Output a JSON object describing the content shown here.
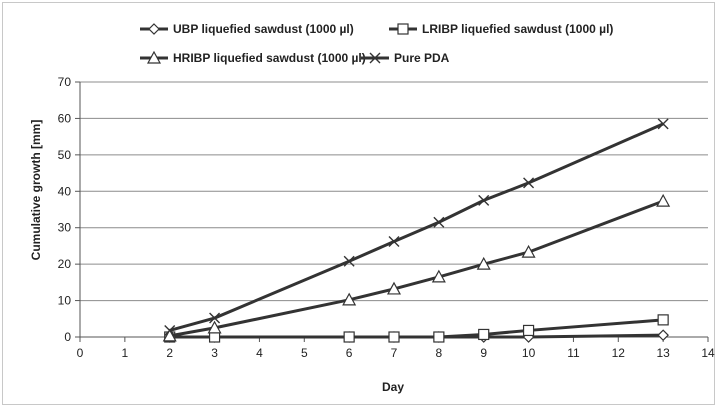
{
  "chart_data": {
    "type": "line",
    "title": "",
    "xlabel": "Day",
    "ylabel": "Cumulative growth [mm]",
    "xlim": [
      0,
      14
    ],
    "ylim": [
      0,
      70
    ],
    "xticks": [
      0,
      1,
      2,
      3,
      4,
      5,
      6,
      7,
      8,
      9,
      10,
      11,
      12,
      13,
      14
    ],
    "yticks": [
      0,
      10,
      20,
      30,
      40,
      50,
      60,
      70
    ],
    "grid": "horizontal",
    "legend_position": "top",
    "series": [
      {
        "name": "UBP liquefied sawdust (1000 µl)",
        "marker": "diamond",
        "x": [
          2,
          3,
          6,
          7,
          8,
          9,
          10,
          13
        ],
        "y": [
          0,
          0,
          0,
          0,
          0,
          0,
          0,
          0.5
        ]
      },
      {
        "name": "LRIBP liquefied sawdust (1000 µl)",
        "marker": "square",
        "x": [
          2,
          3,
          6,
          7,
          8,
          9,
          10,
          13
        ],
        "y": [
          0,
          0,
          0,
          0,
          0,
          0.7,
          1.8,
          4.7
        ]
      },
      {
        "name": "HRIBP liquefied sawdust (1000 µl)",
        "marker": "triangle",
        "x": [
          2,
          3,
          6,
          7,
          8,
          9,
          10,
          13
        ],
        "y": [
          0.3,
          2.5,
          10.2,
          13.2,
          16.5,
          20,
          23.3,
          37.3
        ]
      },
      {
        "name": "Pure PDA",
        "marker": "x",
        "x": [
          2,
          3,
          6,
          7,
          8,
          9,
          10,
          13
        ],
        "y": [
          1.8,
          5.2,
          20.8,
          26.2,
          31.5,
          37.5,
          42.3,
          58.5
        ]
      }
    ]
  }
}
